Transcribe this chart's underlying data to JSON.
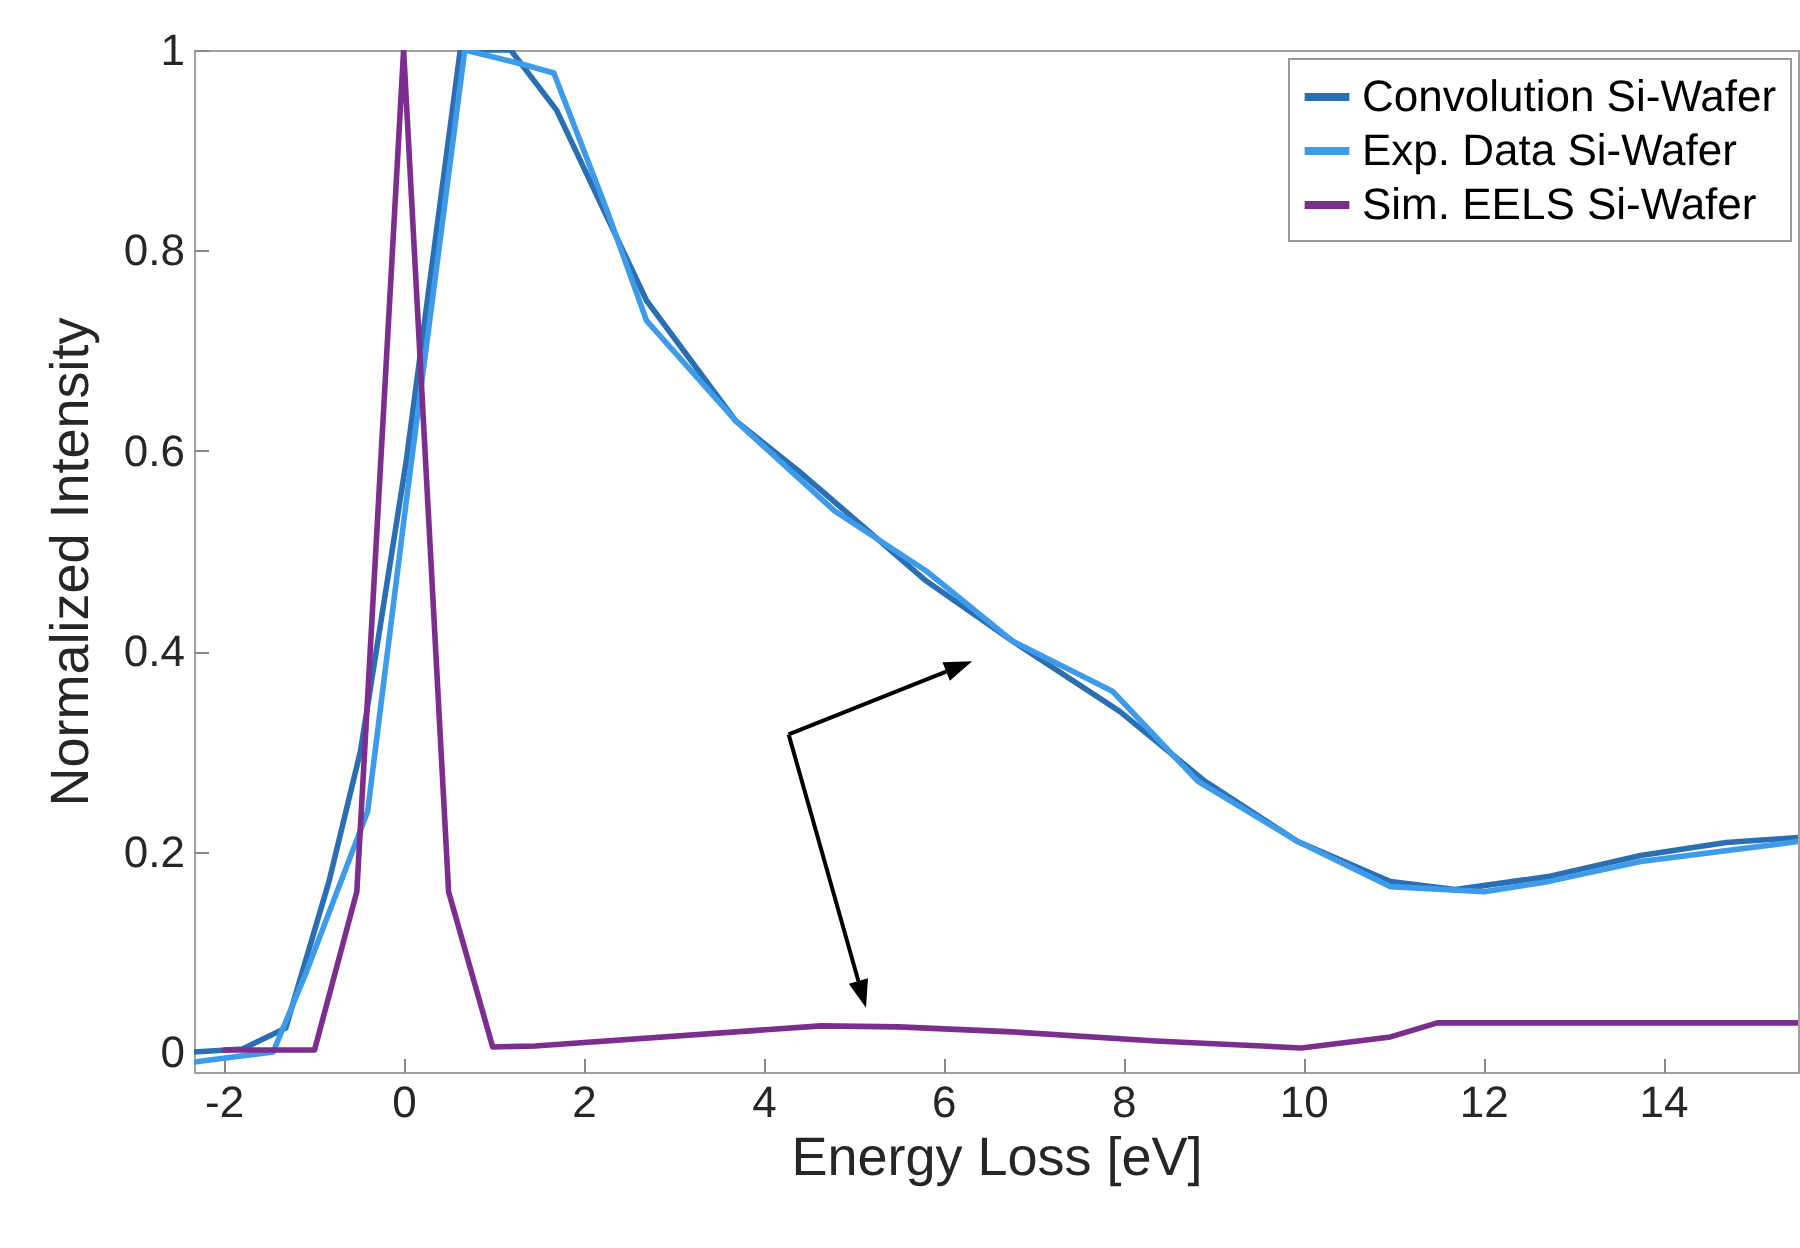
{
  "chart_data": {
    "type": "line",
    "xlabel": "Energy Loss [eV]",
    "ylabel": "Normalized Intensity",
    "xlim": [
      -2.33,
      15.5
    ],
    "ylim": [
      -0.02,
      1
    ],
    "xticks": [
      -2,
      0,
      2,
      4,
      6,
      8,
      10,
      12,
      14
    ],
    "yticks": [
      0,
      0.2,
      0.4,
      0.6,
      0.8,
      1
    ],
    "legend": "top right",
    "series": [
      {
        "name": "Convolution Si-Wafer",
        "color": "#2a6fb3",
        "x": [
          -2.33,
          -1.79,
          -1.31,
          -0.83,
          -0.48,
          0.03,
          0.63,
          1.19,
          1.7,
          2.7,
          3.69,
          4.39,
          5.81,
          6.77,
          7.96,
          8.91,
          9.94,
          10.97,
          11.69,
          12.72,
          13.75,
          14.7,
          15.5
        ],
        "values": [
          0.0,
          0.003,
          0.024,
          0.17,
          0.3,
          0.59,
          1.0,
          1.0,
          0.94,
          0.75,
          0.63,
          0.58,
          0.47,
          0.41,
          0.34,
          0.27,
          0.21,
          0.17,
          0.162,
          0.175,
          0.196,
          0.209,
          0.214
        ]
      },
      {
        "name": "Exp. Data Si-Wafer",
        "color": "#3d9be9",
        "x": [
          -2.33,
          -1.45,
          -1.08,
          -0.4,
          0.03,
          0.68,
          1.31,
          1.67,
          2.26,
          2.7,
          3.69,
          4.79,
          5.81,
          6.77,
          7.88,
          8.83,
          9.94,
          10.97,
          12.01,
          12.72,
          13.75,
          15.5
        ],
        "values": [
          -0.01,
          0.0,
          0.08,
          0.24,
          0.55,
          1.0,
          0.986,
          0.977,
          0.84,
          0.73,
          0.63,
          0.54,
          0.48,
          0.41,
          0.36,
          0.27,
          0.21,
          0.165,
          0.16,
          0.17,
          0.19,
          0.21
        ]
      },
      {
        "name": "Sim. EELS Si-Wafer",
        "color": "#7b2e8e",
        "x": [
          -1.99,
          -0.99,
          -0.52,
          0,
          0.5,
          0.99,
          1.46,
          4.64,
          5.5,
          6.77,
          8.36,
          9.98,
          10.97,
          11.49,
          15.5
        ],
        "values": [
          0.002,
          0.002,
          0.16,
          1.0,
          0.16,
          0.005,
          0.006,
          0.026,
          0.025,
          0.02,
          0.011,
          0.004,
          0.015,
          0.029,
          0.029
        ]
      }
    ]
  }
}
